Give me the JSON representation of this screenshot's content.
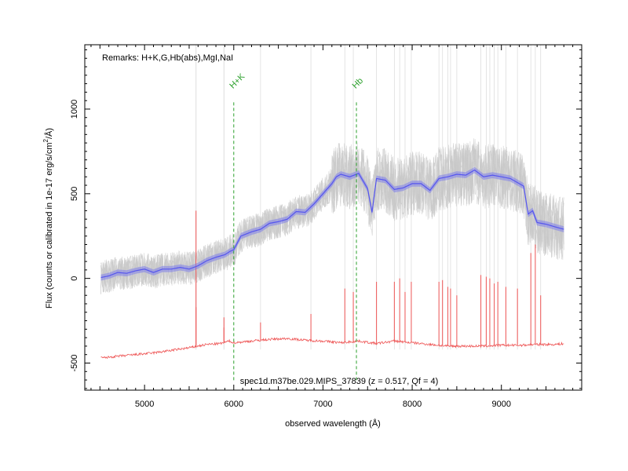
{
  "chart_data": {
    "type": "line",
    "xlabel": "observed wavelength (Å)",
    "ylabel_main": "Flux (counts or calibrated in 1e-17 erg/s/cm",
    "ylabel_sup": "2",
    "ylabel_end": "/Å)",
    "xlim": [
      4330,
      9900
    ],
    "ylim": [
      -660,
      1380
    ],
    "x_ticks": [
      5000,
      6000,
      7000,
      8000,
      9000
    ],
    "x_tick_labels": [
      "5000",
      "6000",
      "7000",
      "8000",
      "9000"
    ],
    "y_ticks": [
      -500,
      0,
      500,
      1000
    ],
    "y_tick_labels": [
      "-500",
      "0",
      "500",
      "1000"
    ],
    "remarks": "Remarks: H+K,G,Hb(abs),MgI,NaI",
    "caption": "spec1d.m37be.029.MIPS_37839 (z = 0.517, Qf = 4)",
    "grid": false,
    "lines": [
      {
        "label": "H+K",
        "x": 6000,
        "color": "#2ca02c"
      },
      {
        "label": "Hb",
        "x": 7375,
        "color": "#2ca02c"
      }
    ],
    "series": [
      {
        "name": "",
        "color": "#5555ee",
        "x": [
          4510,
          4600,
          4700,
          4800,
          4900,
          5000,
          5100,
          5200,
          5300,
          5400,
          5500,
          5600,
          5700,
          5800,
          5900,
          5960,
          6000,
          6080,
          6200,
          6300,
          6400,
          6500,
          6600,
          6700,
          6800,
          6900,
          7000,
          7100,
          7150,
          7200,
          7300,
          7400,
          7500,
          7550,
          7600,
          7700,
          7800,
          7900,
          8000,
          8100,
          8200,
          8300,
          8400,
          8500,
          8600,
          8700,
          8800,
          8900,
          9000,
          9100,
          9200,
          9250,
          9300,
          9350,
          9400,
          9500,
          9600,
          9700
        ],
        "values": [
          5,
          15,
          35,
          30,
          45,
          55,
          35,
          55,
          55,
          65,
          55,
          75,
          105,
          125,
          140,
          160,
          170,
          250,
          275,
          290,
          325,
          335,
          350,
          395,
          390,
          440,
          500,
          560,
          600,
          615,
          600,
          620,
          530,
          390,
          590,
          580,
          525,
          535,
          560,
          560,
          520,
          590,
          600,
          615,
          610,
          640,
          600,
          610,
          600,
          590,
          560,
          545,
          380,
          400,
          330,
          320,
          305,
          290
        ]
      },
      {
        "name": "",
        "color": "#ee5555",
        "x": [
          4510,
          4700,
          4900,
          5100,
          5300,
          5500,
          5700,
          5850,
          5950,
          6000,
          6200,
          6400,
          6600,
          6800,
          7000,
          7200,
          7400,
          7600,
          7800,
          8000,
          8200,
          8400,
          8600,
          8800,
          9000,
          9200,
          9400,
          9600,
          9700
        ],
        "values": [
          -470,
          -460,
          -450,
          -440,
          -425,
          -410,
          -390,
          -385,
          -370,
          -380,
          -370,
          -360,
          -355,
          -365,
          -370,
          -380,
          -370,
          -385,
          -370,
          -380,
          -390,
          -400,
          -400,
          -400,
          -395,
          -395,
          -390,
          -390,
          -385
        ]
      }
    ],
    "sky_lines": [
      {
        "x": 5577,
        "values": [
          -170,
          400
        ]
      },
      {
        "x": 5890,
        "values": [
          -290,
          -230
        ]
      },
      {
        "x": 6300,
        "values": [
          -260
        ]
      },
      {
        "x": 6865,
        "values": [
          -210
        ]
      },
      {
        "x": 7245,
        "values": [
          -60
        ]
      },
      {
        "x": 7340,
        "values": [
          -80
        ]
      },
      {
        "x": 7600,
        "values": [
          -20
        ]
      },
      {
        "x": 7800,
        "values": [
          -20
        ]
      },
      {
        "x": 7860,
        "values": [
          0
        ]
      },
      {
        "x": 7920,
        "values": [
          -80
        ]
      },
      {
        "x": 7990,
        "values": [
          -20
        ]
      },
      {
        "x": 8300,
        "values": [
          -20
        ]
      },
      {
        "x": 8340,
        "values": [
          -10
        ]
      },
      {
        "x": 8400,
        "values": [
          -50
        ]
      },
      {
        "x": 8430,
        "values": [
          -60
        ]
      },
      {
        "x": 8500,
        "values": [
          -100
        ]
      },
      {
        "x": 8770,
        "values": [
          20
        ]
      },
      {
        "x": 8830,
        "values": [
          10
        ]
      },
      {
        "x": 8870,
        "values": [
          0
        ]
      },
      {
        "x": 8920,
        "values": [
          -30
        ]
      },
      {
        "x": 8960,
        "values": [
          -20
        ]
      },
      {
        "x": 9050,
        "values": [
          -50
        ]
      },
      {
        "x": 9180,
        "values": [
          -60
        ]
      },
      {
        "x": 9330,
        "values": [
          150
        ]
      },
      {
        "x": 9380,
        "values": [
          200
        ]
      },
      {
        "x": 9440,
        "values": [
          -100
        ]
      }
    ]
  }
}
